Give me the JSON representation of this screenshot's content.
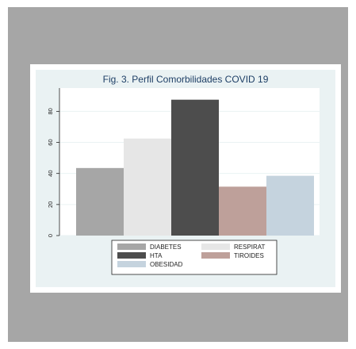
{
  "chart_data": {
    "type": "bar",
    "title": "Fig. 3. Perfil Comorbilidades  COVID 19",
    "xlabel": "",
    "ylabel": "",
    "ylim": [
      0,
      95
    ],
    "yticks": [
      0,
      20,
      40,
      60,
      80
    ],
    "grid": true,
    "legend_position": "bottom",
    "series": [
      {
        "name": "DIABETES",
        "value": 43.5,
        "color": "#a6a6a6"
      },
      {
        "name": "RESPIRAT",
        "value": 62.5,
        "color": "#e6e6e6"
      },
      {
        "name": "HTA",
        "value": 87.5,
        "color": "#4d4d4d"
      },
      {
        "name": "TIROIDES",
        "value": 31.5,
        "color": "#bea09a"
      },
      {
        "name": "OBESIDAD",
        "value": 38.5,
        "color": "#c5d3de"
      }
    ]
  }
}
